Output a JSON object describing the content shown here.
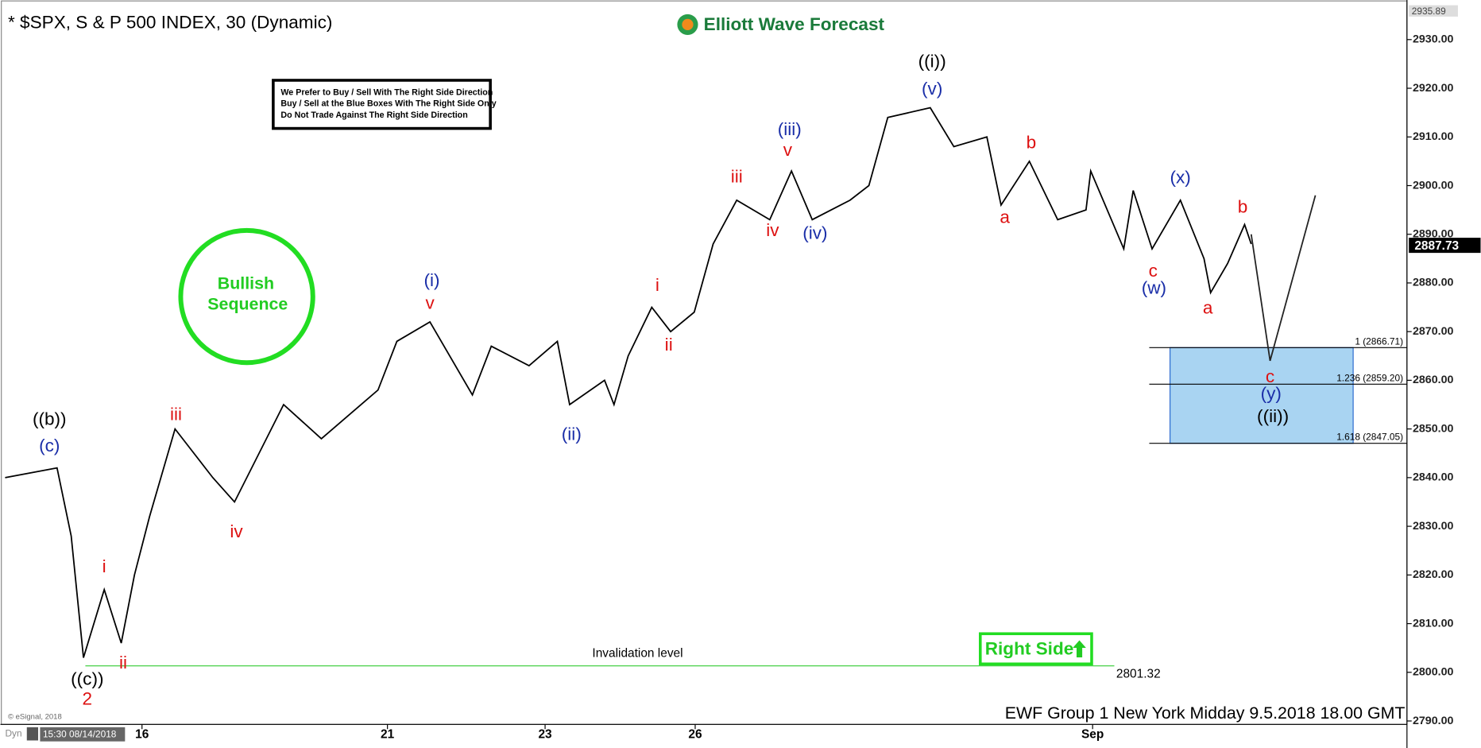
{
  "chart_data": {
    "type": "line",
    "title": "* $SPX, S & P 500 INDEX, 30 (Dynamic)",
    "logo": "Elliott Wave Forecast",
    "rules": [
      "We Prefer to Buy / Sell With The Right Side Direction",
      "Buy / Sell at the Blue Boxes With The Right Side Only",
      "Do Not Trade Against The Right Side Direction"
    ],
    "badge": [
      "Bullish",
      "Sequence"
    ],
    "right_side": "Right Side",
    "footer": "EWF Group 1 New York Midday  9.5.2018 18.00 GMT",
    "copyright": "© eSignal, 2018",
    "cursor_time": "15:30 08/14/2018",
    "mode": "Dyn",
    "x": [
      0.5,
      6,
      7.5,
      8.8,
      11,
      12.8,
      14.2,
      15.8,
      18.5,
      22.5,
      24.8,
      30,
      34,
      40,
      42,
      45.5,
      50,
      52,
      56,
      59,
      60.3,
      64,
      65,
      66.5,
      69,
      71,
      73.5,
      75.5,
      78,
      81.5,
      83.8,
      86,
      90,
      92,
      94,
      98.5,
      101,
      104.5,
      106,
      109,
      112,
      115,
      115.5,
      119,
      120,
      122,
      125,
      127.5,
      128.2,
      130,
      131.8,
      132.5,
      134.5,
      139.3
    ],
    "series": [
      {
        "color": "#000000",
        "values": [
          2840,
          2842,
          2828,
          2803,
          2817,
          2806,
          2820,
          2832,
          2850,
          2840,
          2835,
          2855,
          2848,
          2858,
          2868,
          2872,
          2857,
          2867,
          2863,
          2868,
          2855,
          2860,
          2855,
          2865,
          2875,
          2870,
          2874,
          2888,
          2897,
          2893,
          2903,
          2893,
          2897,
          2900,
          2914,
          2916,
          2908,
          2910,
          2896,
          2905,
          2893,
          2895,
          2903,
          2887,
          2899,
          2887,
          2897,
          2885,
          2878,
          2884,
          2892,
          2888,
          null,
          null
        ]
      },
      {
        "color": "#222222",
        "values": [
          null,
          null,
          null,
          null,
          null,
          null,
          null,
          null,
          null,
          null,
          null,
          null,
          null,
          null,
          null,
          null,
          null,
          null,
          null,
          null,
          null,
          null,
          null,
          null,
          null,
          null,
          null,
          null,
          null,
          null,
          null,
          null,
          null,
          null,
          null,
          null,
          null,
          null,
          null,
          null,
          null,
          null,
          null,
          null,
          null,
          null,
          null,
          null,
          null,
          null,
          null,
          2890,
          2864,
          2898
        ]
      }
    ],
    "xlim": [
      0,
      149
    ],
    "xticks": [
      {
        "value": 15,
        "label": "16"
      },
      {
        "value": 41,
        "label": "21"
      },
      {
        "value": 57.7,
        "label": "23"
      },
      {
        "value": 73.6,
        "label": "26"
      },
      {
        "value": 115.7,
        "label": "Sep"
      }
    ],
    "ylim": [
      2786,
      2936
    ],
    "yticks": [
      {
        "value": 2790,
        "label": "2790.00"
      },
      {
        "value": 2800,
        "label": "2800.00"
      },
      {
        "value": 2810,
        "label": "2810.00"
      },
      {
        "value": 2820,
        "label": "2820.00"
      },
      {
        "value": 2830,
        "label": "2830.00"
      },
      {
        "value": 2840,
        "label": "2840.00"
      },
      {
        "value": 2850,
        "label": "2850.00"
      },
      {
        "value": 2860,
        "label": "2860.00"
      },
      {
        "value": 2870,
        "label": "2870.00"
      },
      {
        "value": 2880,
        "label": "2880.00"
      },
      {
        "value": 2890,
        "label": "2890.00"
      },
      {
        "value": 2900,
        "label": "2900.00"
      },
      {
        "value": 2910,
        "label": "2910.00"
      },
      {
        "value": 2920,
        "label": "2920.00"
      },
      {
        "value": 2930,
        "label": "2930.00"
      }
    ],
    "top_price": {
      "value": 2935.89,
      "label": "2935.89"
    },
    "last_price": {
      "value": 2887.73,
      "label": "2887.73"
    },
    "fib_levels": [
      {
        "value": 2866.71,
        "label": "1 (2866.71)"
      },
      {
        "value": 2859.2,
        "label": "1.236 (2859.20)"
      },
      {
        "value": 2847.05,
        "label": "1.618 (2847.05)"
      }
    ],
    "invalidation": {
      "value": 2801.32,
      "label": "2801.32",
      "text": "Invalidation level"
    },
    "wave_labels": [
      {
        "text": "((b))",
        "color": "#000000"
      },
      {
        "text": "(c)",
        "color": "#1a2ea8"
      },
      {
        "text": "((c))",
        "color": "#000000"
      },
      {
        "text": "2",
        "color": "#dd1111"
      },
      {
        "text": "i",
        "color": "#dd1111"
      },
      {
        "text": "ii",
        "color": "#dd1111"
      },
      {
        "text": "iii",
        "color": "#dd1111"
      },
      {
        "text": "iv",
        "color": "#dd1111"
      },
      {
        "text": "(i)",
        "color": "#1a2ea8"
      },
      {
        "text": "v",
        "color": "#dd1111"
      },
      {
        "text": "(ii)",
        "color": "#1a2ea8"
      },
      {
        "text": "i",
        "color": "#dd1111"
      },
      {
        "text": "ii",
        "color": "#dd1111"
      },
      {
        "text": "iii",
        "color": "#dd1111"
      },
      {
        "text": "iv",
        "color": "#dd1111"
      },
      {
        "text": "(iii)",
        "color": "#1a2ea8"
      },
      {
        "text": "v",
        "color": "#dd1111"
      },
      {
        "text": "(iv)",
        "color": "#1a2ea8"
      },
      {
        "text": "((i))",
        "color": "#000000"
      },
      {
        "text": "(v)",
        "color": "#1a2ea8"
      },
      {
        "text": "a",
        "color": "#dd1111"
      },
      {
        "text": "b",
        "color": "#dd1111"
      },
      {
        "text": "c",
        "color": "#dd1111"
      },
      {
        "text": "(w)",
        "color": "#1a2ea8"
      },
      {
        "text": "(x)",
        "color": "#1a2ea8"
      },
      {
        "text": "a",
        "color": "#dd1111"
      },
      {
        "text": "b",
        "color": "#dd1111"
      },
      {
        "text": "c",
        "color": "#dd1111"
      },
      {
        "text": "(y)",
        "color": "#1a2ea8"
      },
      {
        "text": "((ii))",
        "color": "#000000"
      }
    ]
  }
}
